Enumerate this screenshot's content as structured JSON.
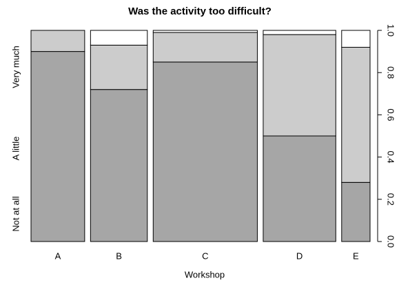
{
  "chart_data": {
    "type": "spineplot",
    "title": "Was the activity too difficult?",
    "x_label": "Workshop",
    "categories": [
      "A",
      "B",
      "C",
      "D",
      "E"
    ],
    "widths": [
      0.17,
      0.18,
      0.33,
      0.23,
      0.09
    ],
    "series": [
      {
        "name": "Not at all",
        "color": "#a6a6a6",
        "values": [
          0.9,
          0.72,
          0.85,
          0.5,
          0.28
        ]
      },
      {
        "name": "A little",
        "color": "#cccccc",
        "values": [
          0.1,
          0.21,
          0.14,
          0.48,
          0.64
        ]
      },
      {
        "name": "Very much",
        "color": "#ffffff",
        "values": [
          0.0,
          0.07,
          0.01,
          0.02,
          0.08
        ]
      }
    ],
    "ylim": [
      0,
      1
    ],
    "yticks": [
      {
        "value": 0,
        "label": "0.0"
      },
      0.2,
      0.4,
      0.6,
      0.8,
      {
        "value": 1,
        "label": "1.0"
      }
    ]
  }
}
